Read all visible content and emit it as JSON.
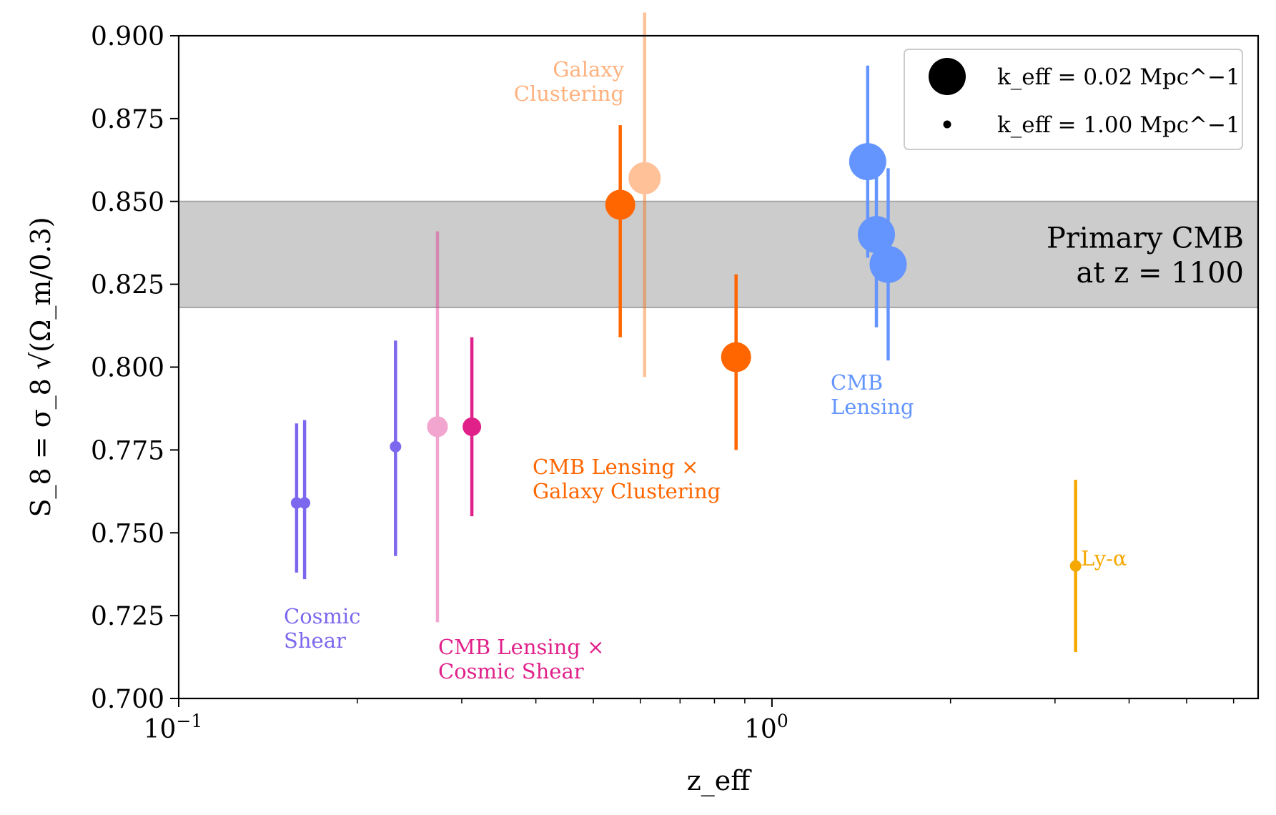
{
  "chart_data": {
    "type": "scatter",
    "xlabel": "z_eff",
    "ylabel": "S_8 = σ_8 √(Ω_m/0.3)",
    "xscale": "log",
    "xlim": [
      0.1,
      6.6
    ],
    "ylim": [
      0.7,
      0.9
    ],
    "x_ticks": [
      {
        "value": 0.1,
        "base": "10",
        "exp": "−1"
      },
      {
        "value": 1.0,
        "base": "10",
        "exp": "0"
      }
    ],
    "y_ticks": [
      0.7,
      0.725,
      0.75,
      0.775,
      0.8,
      0.825,
      0.85,
      0.875,
      0.9
    ],
    "y_tick_labels": [
      "0.700",
      "0.725",
      "0.750",
      "0.775",
      "0.800",
      "0.825",
      "0.850",
      "0.875",
      "0.900"
    ],
    "band": {
      "y_low": 0.818,
      "y_high": 0.85,
      "color": "#cccccc",
      "label_line1": "Primary CMB",
      "label_line2": "at z = 1100"
    },
    "legend": {
      "placement": "top-right",
      "entries": [
        {
          "label": "k_eff = 0.02 Mpc^−1",
          "k_eff": 0.02
        },
        {
          "label": "k_eff = 1.00 Mpc^−1",
          "k_eff": 1.0
        }
      ]
    },
    "groups": [
      {
        "name": "Cosmic Shear",
        "label_lines": [
          "Cosmic",
          "Shear"
        ],
        "color": "#7B68EE",
        "points": [
          {
            "x": 0.158,
            "y": 0.759,
            "yerr_low": 0.021,
            "yerr_high": 0.024,
            "k_eff": 1.0,
            "alpha": 1.0
          },
          {
            "x": 0.163,
            "y": 0.759,
            "yerr_low": 0.023,
            "yerr_high": 0.025,
            "k_eff": 1.0,
            "alpha": 1.0
          },
          {
            "x": 0.232,
            "y": 0.776,
            "yerr_low": 0.033,
            "yerr_high": 0.032,
            "k_eff": 1.0,
            "alpha": 1.0
          }
        ]
      },
      {
        "name": "CMB Lensing × Cosmic Shear",
        "label_lines": [
          "CMB Lensing ×",
          "Cosmic Shear"
        ],
        "color": "#E0218A",
        "points": [
          {
            "x": 0.273,
            "y": 0.782,
            "yerr_low": 0.059,
            "yerr_high": 0.059,
            "k_eff": 0.5,
            "alpha": 0.4
          },
          {
            "x": 0.312,
            "y": 0.782,
            "yerr_low": 0.027,
            "yerr_high": 0.027,
            "k_eff": 0.5,
            "alpha": 1.0
          }
        ]
      },
      {
        "name": "Galaxy Clustering",
        "label_lines": [
          "Galaxy",
          "Clustering"
        ],
        "color": "#FF6600",
        "points": [
          {
            "x": 0.61,
            "y": 0.857,
            "yerr_low": 0.06,
            "yerr_high": 0.05,
            "k_eff": 0.05,
            "alpha": 0.4
          }
        ]
      },
      {
        "name": "CMB Lensing × Galaxy Clustering",
        "label_lines": [
          "CMB Lensing ×",
          "Galaxy Clustering"
        ],
        "color": "#FF6600",
        "points": [
          {
            "x": 0.555,
            "y": 0.849,
            "yerr_low": 0.04,
            "yerr_high": 0.024,
            "k_eff": 0.05,
            "alpha": 1.0
          },
          {
            "x": 0.87,
            "y": 0.803,
            "yerr_low": 0.028,
            "yerr_high": 0.025,
            "k_eff": 0.05,
            "alpha": 1.0
          }
        ]
      },
      {
        "name": "CMB Lensing",
        "label_lines": [
          "CMB",
          "Lensing"
        ],
        "color": "#6495FF",
        "points": [
          {
            "x": 1.45,
            "y": 0.862,
            "yerr_low": 0.029,
            "yerr_high": 0.029,
            "k_eff": 0.02,
            "alpha": 1.0
          },
          {
            "x": 1.5,
            "y": 0.84,
            "yerr_low": 0.028,
            "yerr_high": 0.02,
            "k_eff": 0.02,
            "alpha": 1.0
          },
          {
            "x": 1.57,
            "y": 0.831,
            "yerr_low": 0.029,
            "yerr_high": 0.029,
            "k_eff": 0.02,
            "alpha": 1.0
          }
        ]
      },
      {
        "name": "Ly-α",
        "label_lines": [
          "Ly-α"
        ],
        "color": "#F5A800",
        "points": [
          {
            "x": 3.25,
            "y": 0.74,
            "yerr_low": 0.026,
            "yerr_high": 0.026,
            "k_eff": 1.0,
            "alpha": 1.0
          }
        ]
      }
    ]
  }
}
